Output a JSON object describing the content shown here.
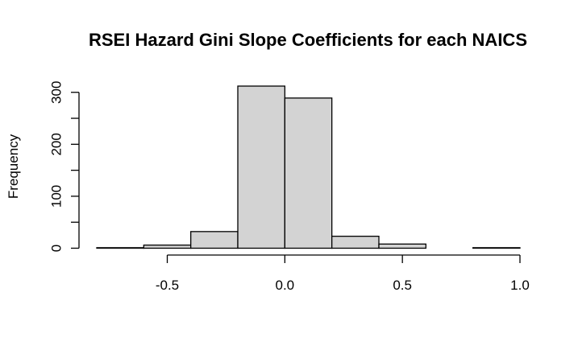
{
  "chart_data": {
    "type": "bar",
    "title": "RSEI Hazard Gini Slope Coefficients for each NAICS",
    "xlabel": "",
    "ylabel": "Frequency",
    "bin_edges": [
      -0.8,
      -0.6,
      -0.4,
      -0.2,
      0.0,
      0.2,
      0.4,
      0.6,
      0.8,
      1.0
    ],
    "values": [
      1,
      6,
      32,
      312,
      289,
      23,
      8,
      0,
      1
    ],
    "xlim": [
      -0.8,
      1.0
    ],
    "ylim": [
      0,
      312
    ],
    "x_ticks": [
      -0.5,
      0.0,
      0.5,
      1.0
    ],
    "x_tick_labels": [
      "-0.5",
      "0.0",
      "0.5",
      "1.0"
    ],
    "y_ticks": [
      0,
      50,
      100,
      150,
      200,
      250,
      300
    ],
    "y_tick_labels": [
      "0",
      "",
      "100",
      "",
      "200",
      "",
      "300"
    ],
    "bar_color": "#d3d3d3",
    "grid": false,
    "legend": "none"
  }
}
